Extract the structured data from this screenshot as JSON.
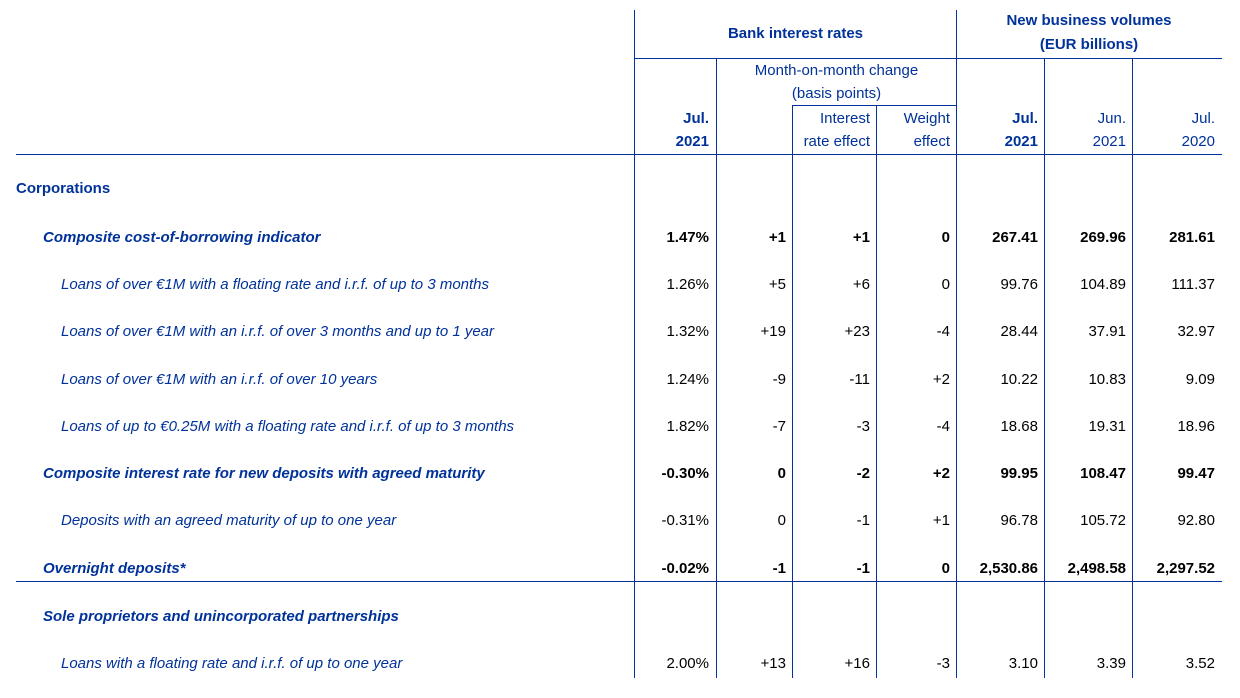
{
  "header": {
    "bank_rates": "Bank interest rates",
    "volumes_line1": "New business volumes",
    "volumes_line2": "(EUR billions)",
    "mom_line1": "Month-on-month change",
    "mom_line2": "(basis points)",
    "ir_effect_line1": "Interest",
    "ir_effect_line2": "rate effect",
    "weight_line1": "Weight",
    "weight_line2": "effect",
    "rate_jul2021_m": "Jul.",
    "rate_jul2021_y": "2021",
    "vol_jul2021_m": "Jul.",
    "vol_jul2021_y": "2021",
    "vol_jun2021_m": "Jun.",
    "vol_jun2021_y": "2021",
    "vol_jul2020_m": "Jul.",
    "vol_jul2020_y": "2020"
  },
  "rows": [
    {
      "label": "Corporations",
      "level": 1,
      "bold": true,
      "values": [
        "",
        "",
        "",
        "",
        "",
        "",
        ""
      ]
    },
    {
      "label": "Composite cost-of-borrowing indicator",
      "level": 2,
      "bold": true,
      "values": [
        "1.47%",
        "+1",
        "+1",
        "0",
        "267.41",
        "269.96",
        "281.61"
      ]
    },
    {
      "label": "Loans of over €1M with a floating rate and i.r.f. of up to 3 months",
      "level": 3,
      "bold": false,
      "values": [
        "1.26%",
        "+5",
        "+6",
        "0",
        "99.76",
        "104.89",
        "111.37"
      ]
    },
    {
      "label": "Loans of over €1M with an i.r.f. of over 3 months and up to 1 year",
      "level": 3,
      "bold": false,
      "values": [
        "1.32%",
        "+19",
        "+23",
        "-4",
        "28.44",
        "37.91",
        "32.97"
      ]
    },
    {
      "label": "Loans of over €1M with an i.r.f. of over 10 years",
      "level": 3,
      "bold": false,
      "values": [
        "1.24%",
        "-9",
        "-11",
        "+2",
        "10.22",
        "10.83",
        "9.09"
      ]
    },
    {
      "label": "Loans of up to €0.25M with a floating rate and i.r.f. of up to 3 months",
      "level": 3,
      "bold": false,
      "values": [
        "1.82%",
        "-7",
        "-3",
        "-4",
        "18.68",
        "19.31",
        "18.96"
      ]
    },
    {
      "label": "Composite interest rate for new deposits with agreed maturity",
      "level": 2,
      "bold": true,
      "values": [
        "-0.30%",
        "0",
        "-2",
        "+2",
        "99.95",
        "108.47",
        "99.47"
      ]
    },
    {
      "label": "Deposits with an agreed maturity of up to one year",
      "level": 3,
      "bold": false,
      "values": [
        "-0.31%",
        "0",
        "-1",
        "+1",
        "96.78",
        "105.72",
        "92.80"
      ]
    },
    {
      "label": "Overnight deposits*",
      "level": 2,
      "bold": true,
      "values": [
        "-0.02%",
        "-1",
        "-1",
        "0",
        "2,530.86",
        "2,498.58",
        "2,297.52"
      ]
    },
    {
      "label": "Sole proprietors and unincorporated partnerships",
      "level": 2,
      "bold": true,
      "values": [
        "",
        "",
        "",
        "",
        "",
        "",
        ""
      ]
    },
    {
      "label": "Loans with a floating rate and i.r.f. of up to one year",
      "level": 3,
      "bold": false,
      "values": [
        "2.00%",
        "+13",
        "+16",
        "-3",
        "3.10",
        "3.39",
        "3.52"
      ]
    }
  ]
}
